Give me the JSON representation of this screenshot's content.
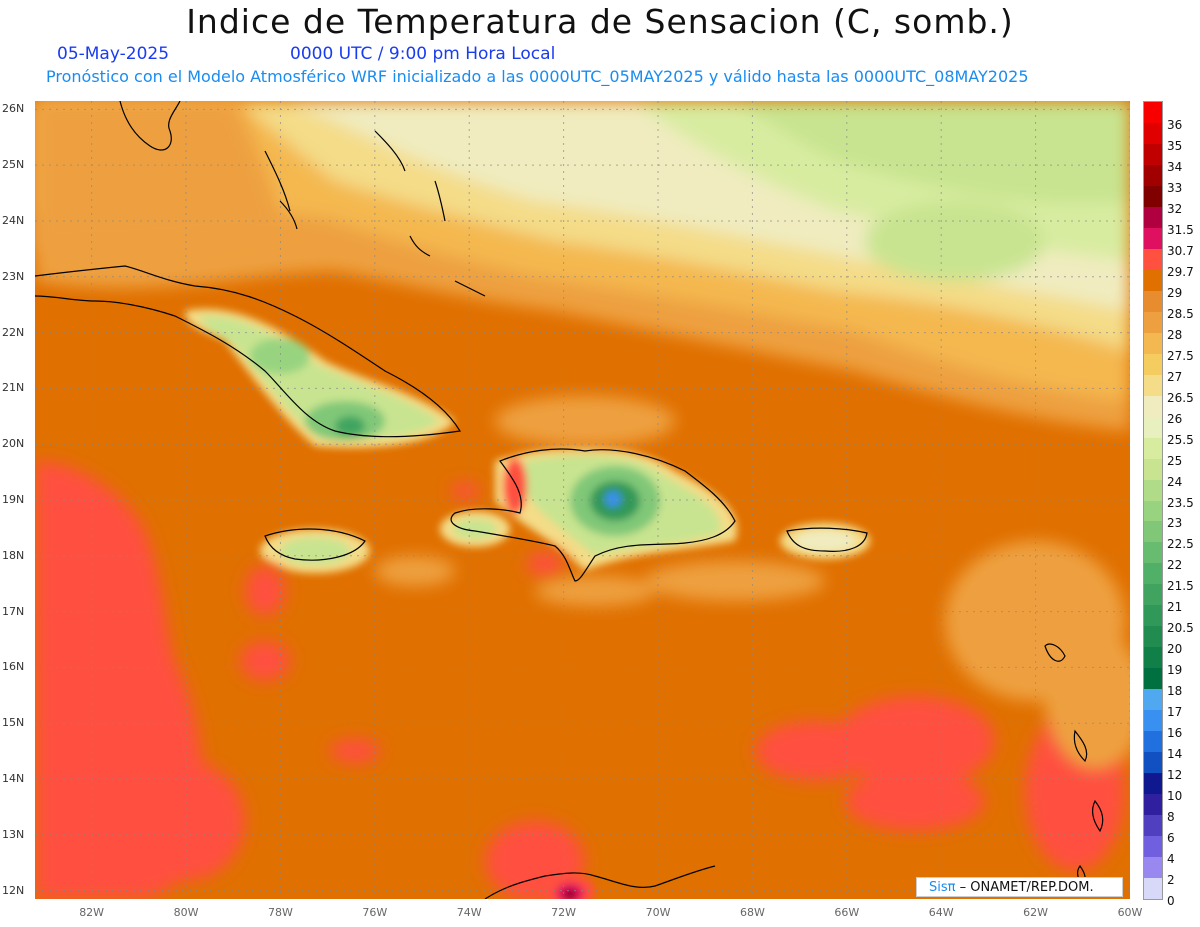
{
  "title": "Indice de Temperatura de Sensacion (C, somb.)",
  "date": "05-May-2025",
  "time": "0000 UTC / 9:00 pm Hora Local",
  "forecast_info": "Pronóstico con el Modelo Atmosférico WRF inicializado a las 0000UTC_05MAY2025 y válido hasta las  0000UTC_08MAY2025",
  "credit": {
    "brand": "Sisπ",
    "text": "– ONAMET/REP.DOM."
  },
  "latitudes": [
    {
      "lat": 26,
      "label": "26N"
    },
    {
      "lat": 25,
      "label": "25N"
    },
    {
      "lat": 24,
      "label": "24N"
    },
    {
      "lat": 23,
      "label": "23N"
    },
    {
      "lat": 22,
      "label": "22N"
    },
    {
      "lat": 21,
      "label": "21N"
    },
    {
      "lat": 20,
      "label": "20N"
    },
    {
      "lat": 19,
      "label": "19N"
    },
    {
      "lat": 18,
      "label": "18N"
    },
    {
      "lat": 17,
      "label": "17N"
    },
    {
      "lat": 16,
      "label": "16N"
    },
    {
      "lat": 15,
      "label": "15N"
    },
    {
      "lat": 14,
      "label": "14N"
    },
    {
      "lat": 13,
      "label": "13N"
    },
    {
      "lat": 12,
      "label": "12N"
    }
  ],
  "longitudes": [
    {
      "lon": -82,
      "label": "82W"
    },
    {
      "lon": -80,
      "label": "80W"
    },
    {
      "lon": -78,
      "label": "78W"
    },
    {
      "lon": -76,
      "label": "76W"
    },
    {
      "lon": -74,
      "label": "74W"
    },
    {
      "lon": -72,
      "label": "72W"
    },
    {
      "lon": -70,
      "label": "70W"
    },
    {
      "lon": -68,
      "label": "68W"
    },
    {
      "lon": -66,
      "label": "66W"
    },
    {
      "lon": -64,
      "label": "64W"
    },
    {
      "lon": -62,
      "label": "62W"
    },
    {
      "lon": -60,
      "label": "60W"
    }
  ],
  "colorbar": [
    {
      "label": "36",
      "color": "#f80000"
    },
    {
      "label": "35",
      "color": "#e00000"
    },
    {
      "label": "34",
      "color": "#c00000"
    },
    {
      "label": "33",
      "color": "#a00000"
    },
    {
      "label": "32",
      "color": "#800000"
    },
    {
      "label": "31.5",
      "color": "#b00040"
    },
    {
      "label": "30.7",
      "color": "#e01060"
    },
    {
      "label": "29.7",
      "color": "#ff5040"
    },
    {
      "label": "29",
      "color": "#e07000"
    },
    {
      "label": "28.5",
      "color": "#e88c30"
    },
    {
      "label": "28",
      "color": "#eea040"
    },
    {
      "label": "27.5",
      "color": "#f4b850"
    },
    {
      "label": "27",
      "color": "#f4cc60"
    },
    {
      "label": "26.5",
      "color": "#f4dc88"
    },
    {
      "label": "26",
      "color": "#f0ecc0"
    },
    {
      "label": "25.5",
      "color": "#e8f0c0"
    },
    {
      "label": "25",
      "color": "#d8eca0"
    },
    {
      "label": "24",
      "color": "#c8e490"
    },
    {
      "label": "23.5",
      "color": "#b0dc88"
    },
    {
      "label": "23",
      "color": "#98d480"
    },
    {
      "label": "22.5",
      "color": "#80c878"
    },
    {
      "label": "22",
      "color": "#68bc70"
    },
    {
      "label": "21.5",
      "color": "#50b068"
    },
    {
      "label": "21",
      "color": "#40a460"
    },
    {
      "label": "20.5",
      "color": "#309858"
    },
    {
      "label": "20",
      "color": "#208c50"
    },
    {
      "label": "19",
      "color": "#108048"
    },
    {
      "label": "18",
      "color": "#007040"
    },
    {
      "label": "17",
      "color": "#50a8f0"
    },
    {
      "label": "16",
      "color": "#3890f0"
    },
    {
      "label": "14",
      "color": "#2070e0"
    },
    {
      "label": "12",
      "color": "#1050c0"
    },
    {
      "label": "10",
      "color": "#101890"
    },
    {
      "label": "8",
      "color": "#3020a0"
    },
    {
      "label": "6",
      "color": "#5040c0"
    },
    {
      "label": "4",
      "color": "#7060e0"
    },
    {
      "label": "2",
      "color": "#9888f0"
    },
    {
      "label": "0",
      "color": "#d8d8f8"
    }
  ],
  "field_colors": {
    "ocean_base": "#e07000",
    "hot": "#ff5040",
    "warm": "#eea040",
    "mid": "#f4cc60",
    "pale": "#f0ecc0",
    "light_green": "#c8e490",
    "green": "#80c878",
    "dark_green": "#208c50",
    "blue": "#3890f0",
    "magenta": "#e01060"
  }
}
